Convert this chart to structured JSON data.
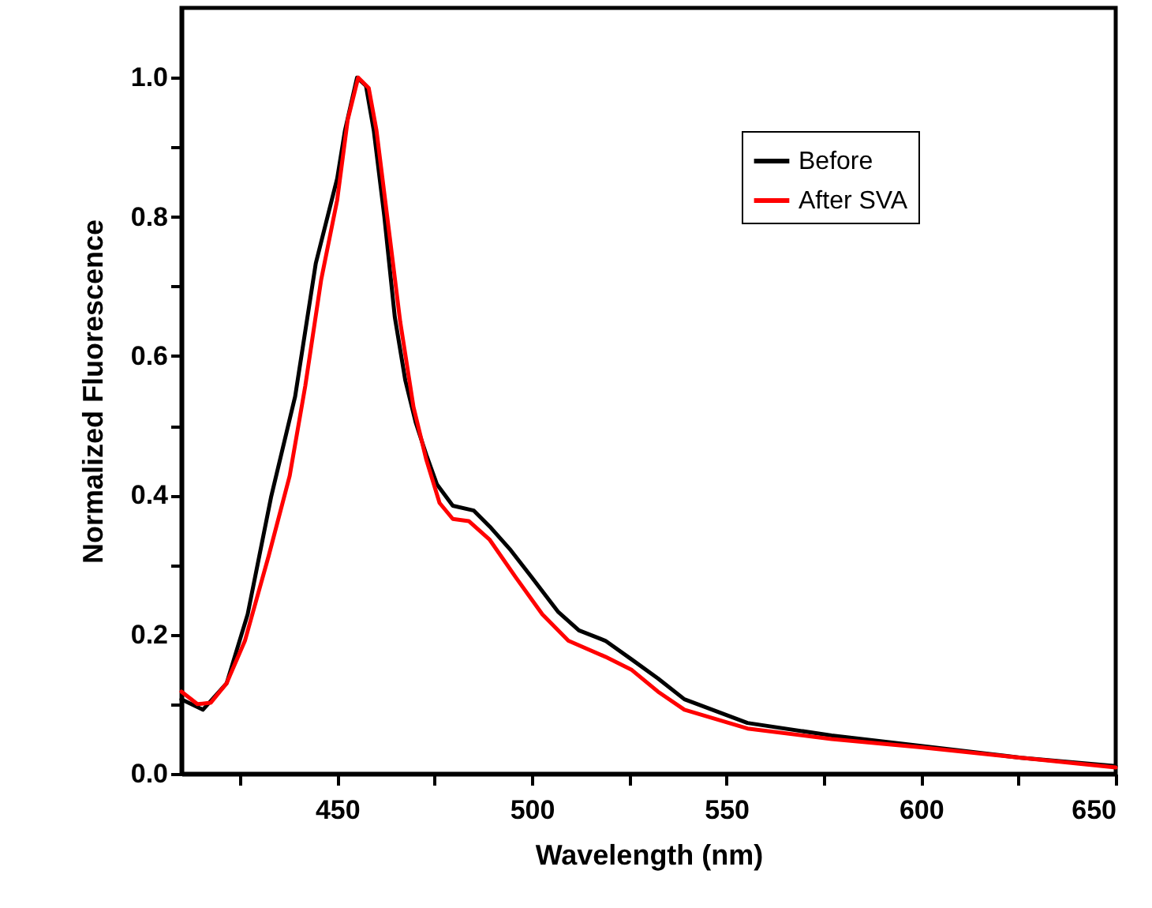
{
  "chart_data": {
    "type": "line",
    "xlabel": "Wavelength (nm)",
    "ylabel": "Normalized Fluorescence",
    "xlim": [
      410,
      650
    ],
    "ylim": [
      0,
      1.1
    ],
    "xticks": [
      {
        "value": 425,
        "label": null
      },
      450,
      {
        "value": 475,
        "label": null
      },
      500,
      {
        "value": 525,
        "label": null
      },
      550,
      {
        "value": 575,
        "label": null
      },
      600,
      {
        "value": 625,
        "label": null
      },
      650
    ],
    "yticks": [
      {
        "value": 0,
        "label": "0.0"
      },
      {
        "value": 0.1,
        "label": null
      },
      {
        "value": 0.2,
        "label": "0.2"
      },
      {
        "value": 0.3,
        "label": null
      },
      {
        "value": 0.4,
        "label": "0.4"
      },
      {
        "value": 0.5,
        "label": null
      },
      {
        "value": 0.6,
        "label": "0.6"
      },
      {
        "value": 0.7,
        "label": null
      },
      {
        "value": 0.8,
        "label": "0.8"
      },
      {
        "value": 0.9,
        "label": null
      },
      {
        "value": 1,
        "label": "1.0"
      }
    ],
    "legend": "top right",
    "grid": false,
    "marker": "none",
    "line_style": "solid",
    "series": [
      {
        "name": "Before",
        "color": "#000000",
        "x": [
          410,
          415.5,
          421.6,
          427,
          433,
          439.2,
          444.5,
          450,
          452,
          455.1,
          457.4,
          459.4,
          462.1,
          464.8,
          467.5,
          470.2,
          472.9,
          475.6,
          479.7,
          485.1,
          489.2,
          494.6,
          500,
          506.7,
          512.1,
          518.9,
          525.7,
          532.4,
          539.2,
          555.4,
          577,
          600,
          625.7,
          650
        ],
        "values": [
          0.107,
          0.092,
          0.13,
          0.229,
          0.397,
          0.542,
          0.733,
          0.855,
          0.924,
          1.0,
          0.988,
          0.924,
          0.801,
          0.656,
          0.565,
          0.504,
          0.458,
          0.416,
          0.385,
          0.378,
          0.355,
          0.321,
          0.282,
          0.233,
          0.206,
          0.191,
          0.164,
          0.137,
          0.107,
          0.073,
          0.055,
          0.04,
          0.023,
          0.011
        ]
      },
      {
        "name": "After SVA",
        "color": "#ff0000",
        "x": [
          410,
          414.1,
          417.5,
          421.6,
          426.3,
          432.4,
          437.8,
          441.8,
          445.9,
          450,
          452.7,
          455.4,
          458.1,
          460.1,
          463.5,
          466.2,
          469.6,
          472.9,
          476.3,
          479.7,
          483.8,
          489.2,
          495.9,
          502.7,
          509.4,
          518.9,
          525.7,
          532.4,
          539.2,
          555.4,
          577,
          600,
          625.7,
          650
        ],
        "values": [
          0.118,
          0.1,
          0.102,
          0.13,
          0.191,
          0.313,
          0.428,
          0.557,
          0.71,
          0.824,
          0.939,
          1.0,
          0.985,
          0.924,
          0.771,
          0.649,
          0.527,
          0.451,
          0.389,
          0.366,
          0.363,
          0.336,
          0.282,
          0.229,
          0.191,
          0.168,
          0.149,
          0.118,
          0.092,
          0.065,
          0.05,
          0.038,
          0.023,
          0.009
        ]
      }
    ]
  }
}
